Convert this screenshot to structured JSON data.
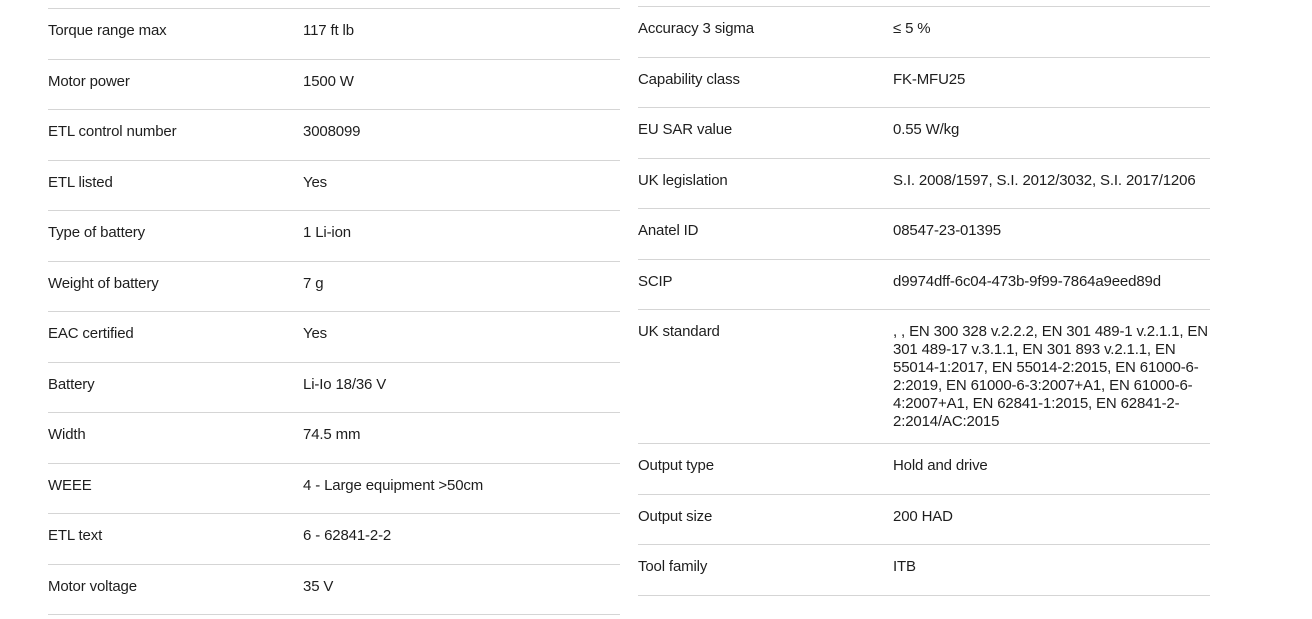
{
  "page": {
    "background_color": "#ffffff",
    "text_color": "#1e1e1e",
    "divider_color": "#d5d5d5"
  },
  "left_table": {
    "rows": [
      {
        "label": "Torque range max",
        "value": "117 ft lb"
      },
      {
        "label": "Motor power",
        "value": "1500 W"
      },
      {
        "label": "ETL control number",
        "value": "3008099"
      },
      {
        "label": "ETL listed",
        "value": "Yes"
      },
      {
        "label": "Type of battery",
        "value": "1 Li-ion"
      },
      {
        "label": "Weight of battery",
        "value": "7 g"
      },
      {
        "label": "EAC certified",
        "value": "Yes"
      },
      {
        "label": "Battery",
        "value": "Li-Io 18/36 V"
      },
      {
        "label": "Width",
        "value": "74.5 mm"
      },
      {
        "label": "WEEE",
        "value": "4 - Large equipment >50cm"
      },
      {
        "label": "ETL text",
        "value": "6 - 62841-2-2"
      },
      {
        "label": "Motor voltage",
        "value": "35 V"
      }
    ]
  },
  "right_table": {
    "rows": [
      {
        "label": "Accuracy 3 sigma",
        "value": "≤ 5 %"
      },
      {
        "label": "Capability class",
        "value": "FK-MFU25"
      },
      {
        "label": "EU SAR value",
        "value": "0.55 W/kg"
      },
      {
        "label": "UK legislation",
        "value": "S.I. 2008/1597, S.I. 2012/3032, S.I. 2017/1206"
      },
      {
        "label": "Anatel ID",
        "value": "08547-23-01395"
      },
      {
        "label": "SCIP",
        "value": "d9974dff-6c04-473b-9f99-7864a9eed89d"
      },
      {
        "label": "UK standard",
        "value": ", , EN 300 328 v.2.2.2, EN 301 489-1 v.2.1.1, EN 301 489-17 v.3.1.1, EN 301 893 v.2.1.1, EN 55014-1:2017, EN 55014-2:2015, EN 61000-6-2:2019, EN 61000-6-3:2007+A1, EN 61000-6-4:2007+A1, EN 62841-1:2015, EN 62841-2-2:2014/AC:2015"
      },
      {
        "label": "Output type",
        "value": "Hold and drive"
      },
      {
        "label": "Output size",
        "value": "200 HAD"
      },
      {
        "label": "Tool family",
        "value": "ITB"
      }
    ]
  }
}
